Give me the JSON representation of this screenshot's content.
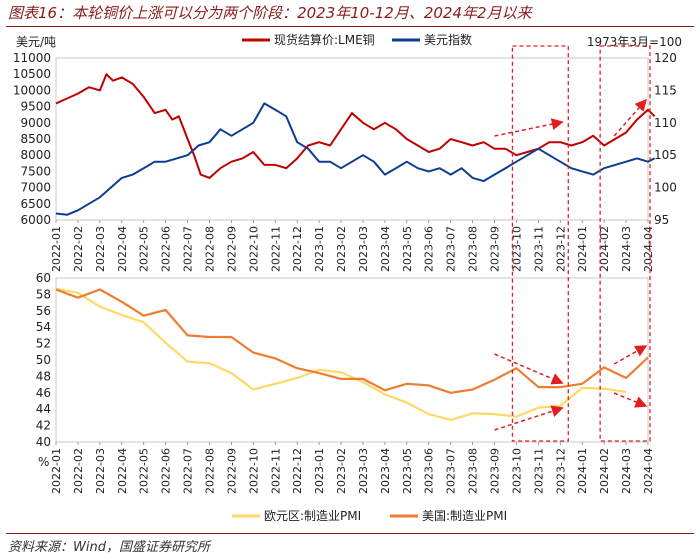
{
  "header": {
    "title": "图表16：本轮铜价上涨可以分为两个阶段：2023年10-12月、2024年2月以来"
  },
  "footer": {
    "source": "资料来源：Wind，国盛证券研究所"
  },
  "colors": {
    "copper": "#C00000",
    "usd": "#0B3D91",
    "eu_pmi": "#FFD966",
    "us_pmi": "#ED7D31",
    "highlight": "#E02020"
  },
  "chart_data": [
    {
      "type": "line",
      "ylabel_left": "美元/吨",
      "ylabel_right": "1973年3月=100",
      "legend_position": "top",
      "x_ticks": [
        "2022-01",
        "2022-02",
        "2022-03",
        "2022-04",
        "2022-05",
        "2022-06",
        "2022-07",
        "2022-08",
        "2022-09",
        "2022-10",
        "2022-11",
        "2022-12",
        "2023-01",
        "2023-02",
        "2023-03",
        "2023-04",
        "2023-05",
        "2023-06",
        "2023-07",
        "2023-08",
        "2023-09",
        "2023-10",
        "2023-11",
        "2023-12",
        "2024-01",
        "2024-02",
        "2024-03",
        "2024-04"
      ],
      "ylim_left": [
        6000,
        11000
      ],
      "yticks_left": [
        6000,
        6500,
        7000,
        7500,
        8000,
        8500,
        9000,
        9500,
        10000,
        10500,
        11000
      ],
      "ylim_right": [
        95,
        120
      ],
      "yticks_right": [
        95,
        100,
        105,
        110,
        115,
        120
      ],
      "series": [
        {
          "name": "现货结算价:LME铜",
          "axis": "left",
          "color": "#C00000",
          "x": [
            0,
            0.5,
            1,
            1.5,
            2,
            2.3,
            2.6,
            3,
            3.5,
            4,
            4.5,
            5,
            5.3,
            5.6,
            6,
            6.3,
            6.6,
            7,
            7.5,
            8,
            8.5,
            9,
            9.5,
            10,
            10.5,
            11,
            11.5,
            12,
            12.5,
            13,
            13.5,
            14,
            14.5,
            15,
            15.5,
            16,
            16.5,
            17,
            17.5,
            18,
            18.5,
            19,
            19.5,
            20,
            20.5,
            21,
            21.5,
            22,
            22.5,
            23,
            23.5,
            24,
            24.5,
            25,
            25.5,
            26,
            26.5,
            27,
            27.3
          ],
          "values": [
            9600,
            9750,
            9900,
            10100,
            10000,
            10500,
            10300,
            10400,
            10200,
            9800,
            9300,
            9400,
            9100,
            9200,
            8500,
            8000,
            7400,
            7300,
            7600,
            7800,
            7900,
            8100,
            7700,
            7700,
            7600,
            7900,
            8300,
            8400,
            8300,
            8800,
            9300,
            9000,
            8800,
            9000,
            8800,
            8500,
            8300,
            8100,
            8200,
            8500,
            8400,
            8300,
            8400,
            8200,
            8200,
            8000,
            8100,
            8200,
            8400,
            8400,
            8300,
            8400,
            8600,
            8300,
            8500,
            8700,
            9100,
            9400,
            9200
          ]
        },
        {
          "name": "美元指数",
          "axis": "right",
          "color": "#0B3D91",
          "x": [
            0,
            0.5,
            1,
            1.5,
            2,
            2.5,
            3,
            3.5,
            4,
            4.5,
            5,
            5.5,
            6,
            6.5,
            7,
            7.5,
            8,
            8.5,
            9,
            9.5,
            10,
            10.5,
            11,
            11.5,
            12,
            12.5,
            13,
            13.5,
            14,
            14.5,
            15,
            15.5,
            16,
            16.5,
            17,
            17.5,
            18,
            18.5,
            19,
            19.5,
            20,
            20.5,
            21,
            21.5,
            22,
            22.5,
            23,
            23.5,
            24,
            24.5,
            25,
            25.5,
            26,
            26.5,
            27,
            27.3
          ],
          "values": [
            96,
            95.8,
            96.5,
            97.5,
            98.5,
            100,
            101.5,
            102,
            103,
            104,
            104,
            104.5,
            105,
            106.5,
            107,
            109,
            108,
            109,
            110,
            113,
            112,
            111,
            107,
            106,
            104,
            104,
            103,
            104,
            105,
            104,
            102,
            103,
            104,
            103,
            102.5,
            103,
            102,
            103,
            101.5,
            101,
            102,
            103,
            104,
            105,
            106,
            105,
            104,
            103,
            102.5,
            102,
            103,
            103.5,
            104,
            104.5,
            104,
            104.5
          ]
        }
      ]
    },
    {
      "type": "line",
      "ylabel": "%",
      "legend_position": "bottom",
      "x_ticks": [
        "2022-01",
        "2022-02",
        "2022-03",
        "2022-04",
        "2022-05",
        "2022-06",
        "2022-07",
        "2022-08",
        "2022-09",
        "2022-10",
        "2022-11",
        "2022-12",
        "2023-01",
        "2023-02",
        "2023-03",
        "2023-04",
        "2023-05",
        "2023-06",
        "2023-07",
        "2023-08",
        "2023-09",
        "2023-10",
        "2023-11",
        "2023-12",
        "2024-01",
        "2024-02",
        "2024-03",
        "2024-04"
      ],
      "ylim": [
        40,
        60
      ],
      "yticks": [
        40,
        42,
        44,
        46,
        48,
        50,
        52,
        54,
        56,
        58,
        60
      ],
      "series": [
        {
          "name": "欧元区:制造业PMI",
          "color": "#FFD966",
          "values": [
            58.7,
            58.2,
            56.5,
            55.5,
            54.6,
            52.1,
            49.8,
            49.6,
            48.4,
            46.4,
            47.1,
            47.8,
            48.8,
            48.5,
            47.3,
            45.8,
            44.8,
            43.4,
            42.7,
            43.5,
            43.4,
            43.1,
            44.2,
            44.4,
            46.6,
            46.5,
            46.1
          ]
        },
        {
          "name": "美国:制造业PMI",
          "color": "#ED7D31",
          "values": [
            58.6,
            57.6,
            58.6,
            57.1,
            55.4,
            56.1,
            53.0,
            52.8,
            52.8,
            50.9,
            50.2,
            49.0,
            48.4,
            47.7,
            47.7,
            46.3,
            47.1,
            46.9,
            46.0,
            46.4,
            47.6,
            49.0,
            46.7,
            46.7,
            47.1,
            49.1,
            47.8,
            50.3
          ]
        }
      ]
    }
  ]
}
